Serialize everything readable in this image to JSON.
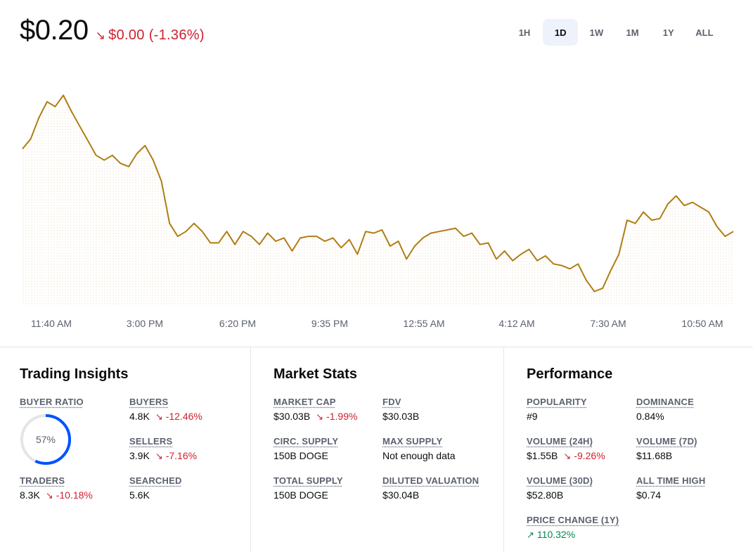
{
  "header": {
    "price": "$0.20",
    "change_arrow": "↘",
    "change_amount": "$0.00",
    "change_pct": "(-1.36%)"
  },
  "ranges": [
    {
      "label": "1H",
      "active": false
    },
    {
      "label": "1D",
      "active": true
    },
    {
      "label": "1W",
      "active": false
    },
    {
      "label": "1M",
      "active": false
    },
    {
      "label": "1Y",
      "active": false
    },
    {
      "label": "ALL",
      "active": false
    }
  ],
  "colors": {
    "line": "#b07d13",
    "negative": "#cf202f",
    "positive": "#098551",
    "ring_fill": "#0052ff",
    "ring_track": "#e3e5e8"
  },
  "chart_data": {
    "type": "line",
    "title": "",
    "xlabel": "",
    "ylabel": "",
    "grid": false,
    "tick_labels": [
      "11:40 AM",
      "3:00 PM",
      "6:20 PM",
      "9:35 PM",
      "12:55 AM",
      "4:12 AM",
      "7:30 AM",
      "10:50 AM"
    ],
    "ylim": [
      0.1958,
      0.2095
    ],
    "series": [
      {
        "values": [
          0.2054,
          0.206,
          0.2073,
          0.2083,
          0.208,
          0.2087,
          0.2077,
          0.2068,
          0.2059,
          0.205,
          0.2047,
          0.205,
          0.2045,
          0.2043,
          0.2051,
          0.2056,
          0.2047,
          0.2034,
          0.2008,
          0.2,
          0.2003,
          0.2008,
          0.2003,
          0.1996,
          0.1996,
          0.2003,
          0.1995,
          0.2003,
          0.2,
          0.1995,
          0.2002,
          0.1997,
          0.1999,
          0.1991,
          0.1999,
          0.2,
          0.2,
          0.1997,
          0.1999,
          0.1993,
          0.1998,
          0.1989,
          0.2003,
          0.2002,
          0.2004,
          0.1994,
          0.1997,
          0.1986,
          0.1994,
          0.1999,
          0.2002,
          0.2003,
          0.2004,
          0.2005,
          0.2,
          0.2002,
          0.1995,
          0.1996,
          0.1986,
          0.1991,
          0.1985,
          0.1989,
          0.1992,
          0.1985,
          0.1988,
          0.1983,
          0.1982,
          0.198,
          0.1983,
          0.1973,
          0.1966,
          0.1968,
          0.1979,
          0.1989,
          0.201,
          0.2008,
          0.2015,
          0.201,
          0.2011,
          0.202,
          0.2025,
          0.2019,
          0.2021,
          0.2018,
          0.2015,
          0.2006,
          0.2,
          0.2003
        ]
      }
    ]
  },
  "insights": {
    "title": "Trading Insights",
    "ring_label": "57%",
    "ring_fraction": 0.57,
    "buyer_ratio_label": "BUYER RATIO",
    "buyers_label": "BUYERS",
    "buyers_value": "4.8K",
    "buyers_delta": "-12.46%",
    "sellers_label": "SELLERS",
    "sellers_value": "3.9K",
    "sellers_delta": "-7.16%",
    "traders_label": "TRADERS",
    "traders_value": "8.3K",
    "traders_delta": "-10.18%",
    "searched_label": "SEARCHED",
    "searched_value": "5.6K",
    "down_arrow": "↘",
    "up_arrow": "↗"
  },
  "market": {
    "title": "Market Stats",
    "market_cap_label": "MARKET CAP",
    "market_cap_value": "$30.03B",
    "market_cap_delta": "-1.99%",
    "fdv_label": "FDV",
    "fdv_value": "$30.03B",
    "circ_label": "CIRC. SUPPLY",
    "circ_value": "150B DOGE",
    "max_label": "MAX SUPPLY",
    "max_value": "Not enough data",
    "total_label": "TOTAL SUPPLY",
    "total_value": "150B DOGE",
    "diluted_label": "DILUTED VALUATION",
    "diluted_value": "$30.04B"
  },
  "performance": {
    "title": "Performance",
    "popularity_label": "POPULARITY",
    "popularity_value": "#9",
    "dominance_label": "DOMINANCE",
    "dominance_value": "0.84%",
    "vol24_label": "VOLUME (24H)",
    "vol24_value": "$1.55B",
    "vol24_delta": "-9.26%",
    "vol7_label": "VOLUME (7D)",
    "vol7_value": "$11.68B",
    "vol30_label": "VOLUME (30D)",
    "vol30_value": "$52.80B",
    "ath_label": "ALL TIME HIGH",
    "ath_value": "$0.74",
    "pc1y_label": "PRICE CHANGE (1Y)",
    "pc1y_value": "110.32%"
  }
}
